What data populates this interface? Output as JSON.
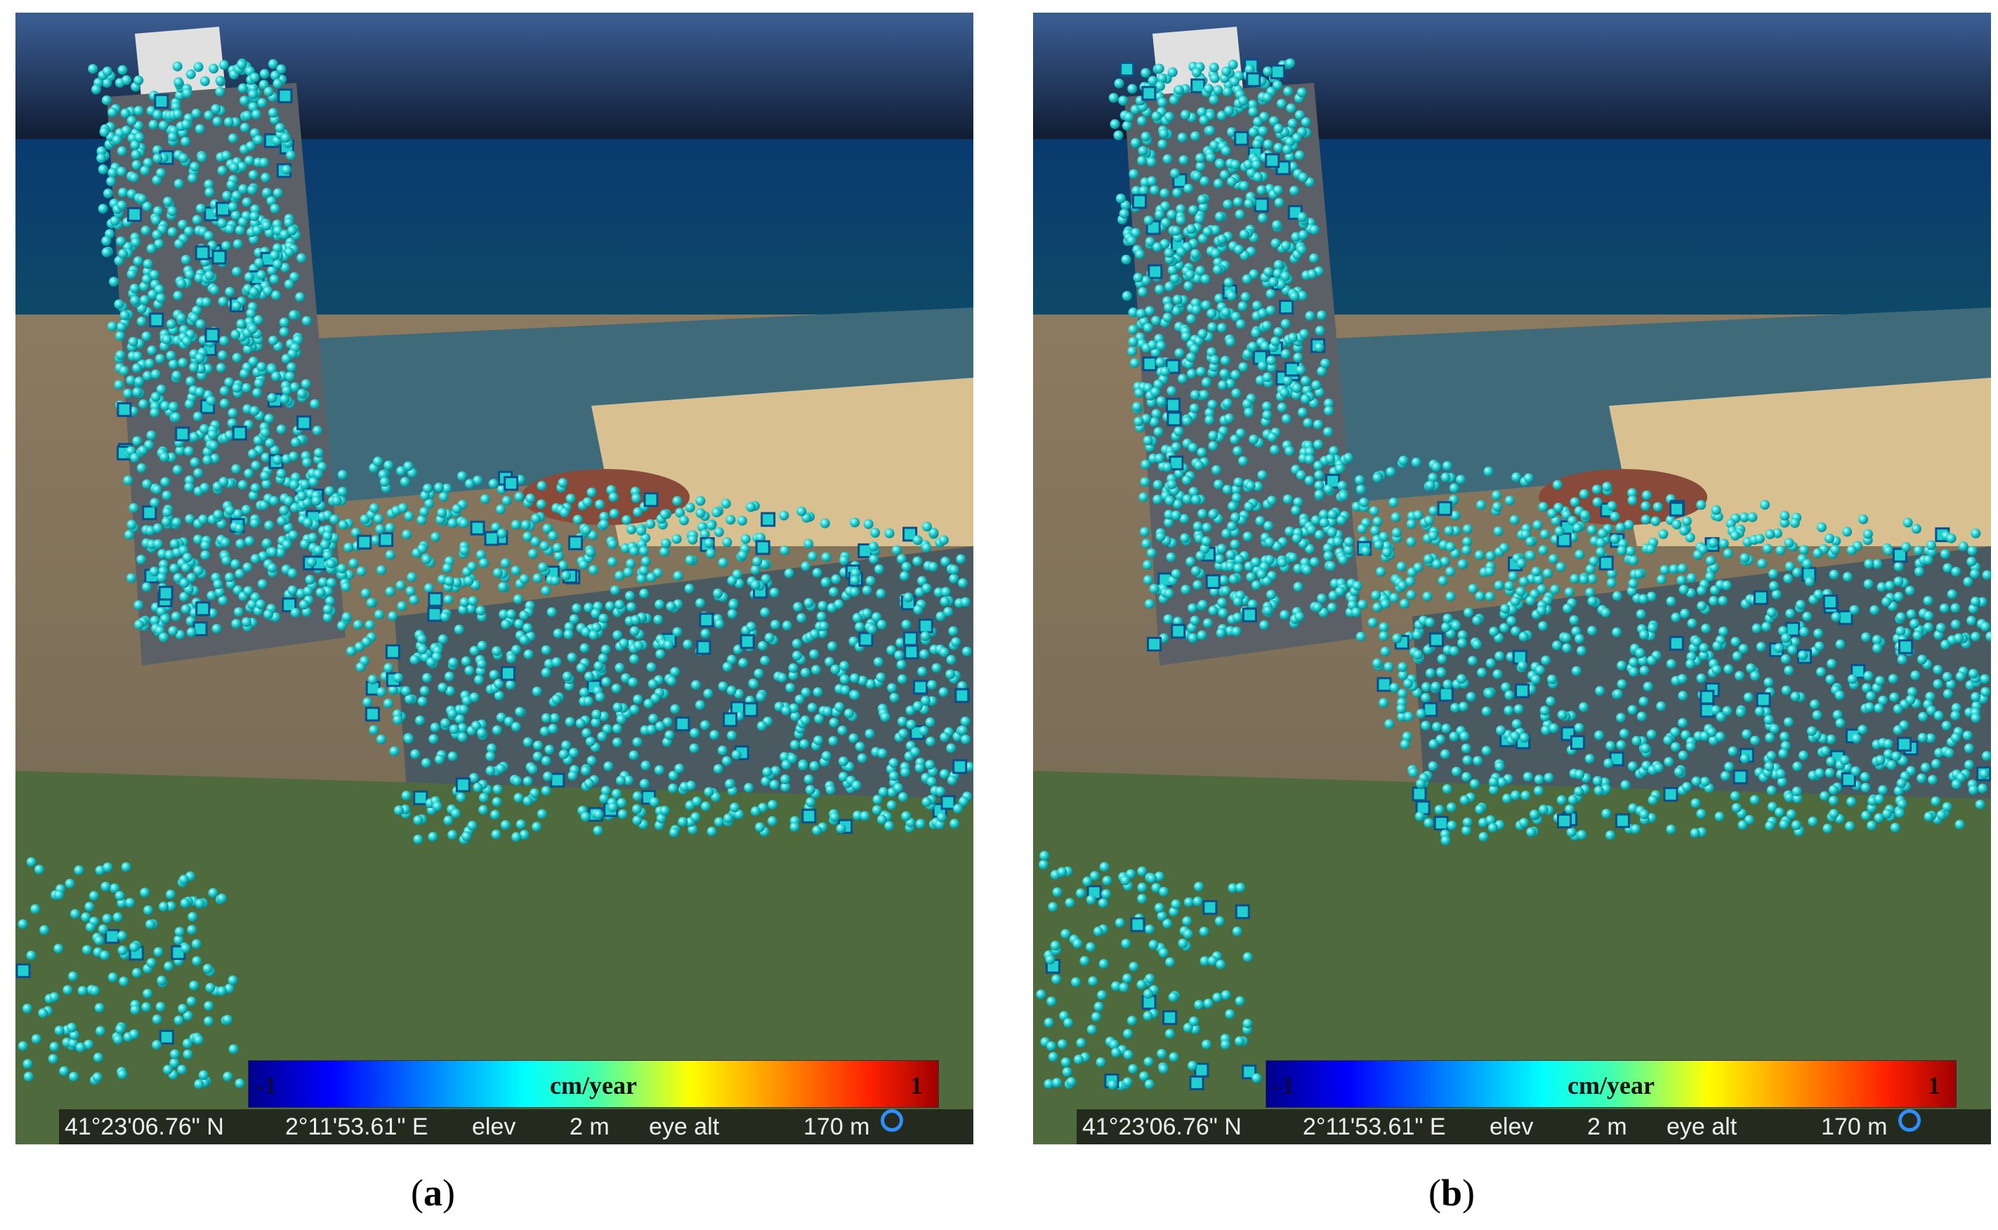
{
  "panels": [
    {
      "id": "a",
      "caption_letter": "a",
      "colorbar": {
        "min": "-1",
        "unit": "cm/year",
        "max": "1"
      },
      "status": {
        "lat": "41°23'06.76\" N",
        "lon": "2°11'53.61\" E",
        "elev_label": "elev",
        "elev_value": "2 m",
        "eye_label": "eye alt",
        "eye_value": "170 m"
      }
    },
    {
      "id": "b",
      "caption_letter": "b",
      "colorbar": {
        "min": "-1",
        "unit": "cm/year",
        "max": "1"
      },
      "status": {
        "lat": "41°23'06.76\" N",
        "lon": "2°11'53.61\" E",
        "elev_label": "elev",
        "elev_value": "2 m",
        "eye_label": "eye alt",
        "eye_value": "170 m"
      }
    }
  ],
  "colors": {
    "point_fill": "#1fd0d0",
    "point_edge": "#0a6f7a",
    "sea": "#0d3a66",
    "sky": "#2b4a7a"
  }
}
